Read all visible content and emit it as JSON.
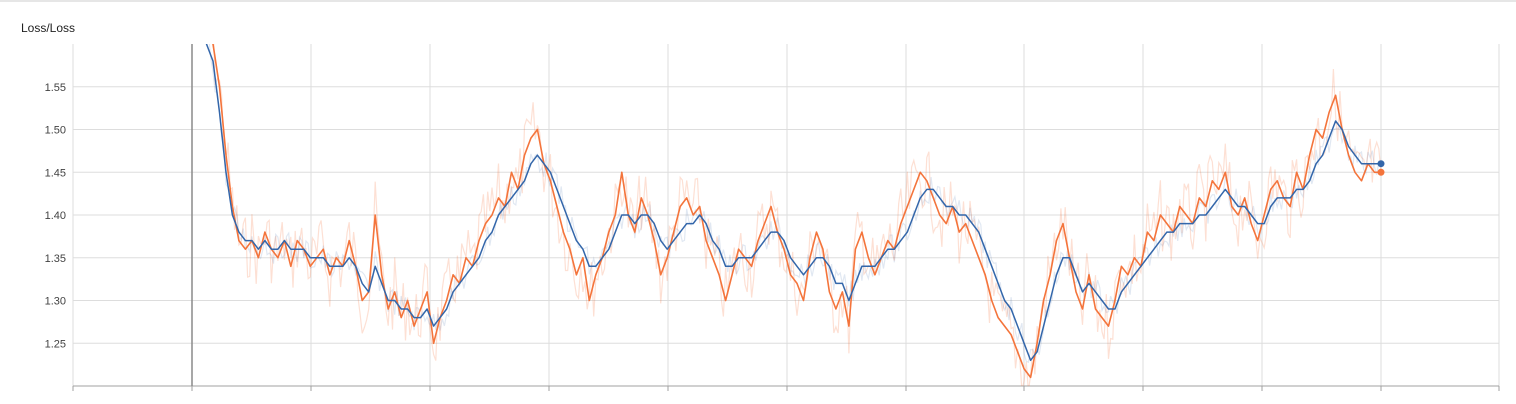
{
  "chart_data": {
    "type": "line",
    "title": "Loss/Loss",
    "xlabel": "",
    "ylabel": "",
    "ylim": [
      1.2,
      1.6
    ],
    "y_ticks": [
      "1.25",
      "1.30",
      "1.35",
      "1.40",
      "1.45",
      "1.50",
      "1.55"
    ],
    "x_tick_labels": [],
    "grid": true,
    "series": [
      {
        "color": "#f4743b",
        "values": [
          1.63,
          1.61,
          1.6,
          1.55,
          1.47,
          1.41,
          1.37,
          1.36,
          1.37,
          1.35,
          1.38,
          1.36,
          1.35,
          1.37,
          1.34,
          1.37,
          1.36,
          1.34,
          1.35,
          1.36,
          1.33,
          1.35,
          1.34,
          1.37,
          1.34,
          1.3,
          1.31,
          1.4,
          1.33,
          1.29,
          1.31,
          1.28,
          1.3,
          1.27,
          1.29,
          1.31,
          1.25,
          1.28,
          1.3,
          1.33,
          1.32,
          1.35,
          1.34,
          1.37,
          1.39,
          1.4,
          1.42,
          1.41,
          1.45,
          1.43,
          1.47,
          1.49,
          1.5,
          1.46,
          1.44,
          1.41,
          1.38,
          1.36,
          1.33,
          1.35,
          1.3,
          1.33,
          1.35,
          1.38,
          1.4,
          1.45,
          1.4,
          1.38,
          1.42,
          1.4,
          1.37,
          1.33,
          1.35,
          1.38,
          1.41,
          1.42,
          1.4,
          1.41,
          1.37,
          1.35,
          1.33,
          1.3,
          1.33,
          1.36,
          1.35,
          1.34,
          1.37,
          1.39,
          1.41,
          1.38,
          1.36,
          1.33,
          1.32,
          1.3,
          1.35,
          1.38,
          1.36,
          1.31,
          1.29,
          1.31,
          1.27,
          1.36,
          1.38,
          1.35,
          1.33,
          1.35,
          1.37,
          1.36,
          1.39,
          1.41,
          1.43,
          1.45,
          1.44,
          1.42,
          1.4,
          1.39,
          1.41,
          1.38,
          1.39,
          1.37,
          1.35,
          1.33,
          1.3,
          1.28,
          1.27,
          1.26,
          1.24,
          1.22,
          1.21,
          1.25,
          1.3,
          1.33,
          1.37,
          1.39,
          1.35,
          1.31,
          1.29,
          1.33,
          1.29,
          1.28,
          1.27,
          1.3,
          1.34,
          1.33,
          1.35,
          1.34,
          1.38,
          1.37,
          1.4,
          1.39,
          1.38,
          1.41,
          1.4,
          1.39,
          1.42,
          1.41,
          1.44,
          1.43,
          1.45,
          1.41,
          1.4,
          1.42,
          1.39,
          1.37,
          1.4,
          1.43,
          1.44,
          1.42,
          1.41,
          1.45,
          1.43,
          1.47,
          1.5,
          1.49,
          1.52,
          1.54,
          1.5,
          1.47,
          1.45,
          1.44,
          1.46,
          1.45,
          1.45
        ]
      },
      {
        "color": "#3366aa",
        "values": [
          1.63,
          1.6,
          1.58,
          1.52,
          1.45,
          1.4,
          1.38,
          1.37,
          1.37,
          1.36,
          1.37,
          1.36,
          1.36,
          1.37,
          1.36,
          1.36,
          1.36,
          1.35,
          1.35,
          1.35,
          1.34,
          1.34,
          1.34,
          1.35,
          1.34,
          1.32,
          1.31,
          1.34,
          1.32,
          1.3,
          1.3,
          1.29,
          1.29,
          1.28,
          1.28,
          1.29,
          1.27,
          1.28,
          1.29,
          1.31,
          1.32,
          1.33,
          1.34,
          1.35,
          1.37,
          1.38,
          1.4,
          1.41,
          1.42,
          1.43,
          1.44,
          1.46,
          1.47,
          1.46,
          1.45,
          1.43,
          1.41,
          1.39,
          1.37,
          1.36,
          1.34,
          1.34,
          1.35,
          1.36,
          1.38,
          1.4,
          1.4,
          1.39,
          1.4,
          1.4,
          1.39,
          1.37,
          1.36,
          1.37,
          1.38,
          1.39,
          1.39,
          1.4,
          1.39,
          1.37,
          1.36,
          1.34,
          1.34,
          1.35,
          1.35,
          1.35,
          1.36,
          1.37,
          1.38,
          1.38,
          1.37,
          1.35,
          1.34,
          1.33,
          1.34,
          1.35,
          1.35,
          1.34,
          1.32,
          1.32,
          1.3,
          1.32,
          1.34,
          1.34,
          1.34,
          1.35,
          1.36,
          1.36,
          1.37,
          1.38,
          1.4,
          1.42,
          1.43,
          1.43,
          1.42,
          1.41,
          1.41,
          1.4,
          1.4,
          1.39,
          1.38,
          1.36,
          1.34,
          1.32,
          1.3,
          1.29,
          1.27,
          1.25,
          1.23,
          1.24,
          1.27,
          1.3,
          1.33,
          1.35,
          1.35,
          1.33,
          1.31,
          1.32,
          1.31,
          1.3,
          1.29,
          1.29,
          1.31,
          1.32,
          1.33,
          1.34,
          1.35,
          1.36,
          1.37,
          1.38,
          1.38,
          1.39,
          1.39,
          1.39,
          1.4,
          1.4,
          1.41,
          1.42,
          1.43,
          1.42,
          1.41,
          1.41,
          1.4,
          1.39,
          1.39,
          1.41,
          1.42,
          1.42,
          1.42,
          1.43,
          1.43,
          1.44,
          1.46,
          1.47,
          1.49,
          1.51,
          1.5,
          1.48,
          1.47,
          1.46,
          1.46,
          1.46,
          1.46
        ]
      }
    ]
  },
  "colors": {
    "grid": "#dddddd",
    "axis": "#a0a0a0",
    "vertical_marker": "#8a8a8a",
    "raw_orange": "#f4743b",
    "raw_blue": "#3366aa"
  }
}
